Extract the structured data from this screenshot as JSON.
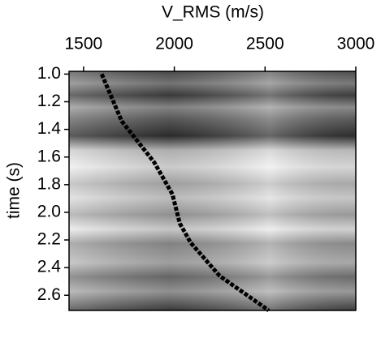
{
  "chart_data": {
    "type": "line",
    "xlabel": "V_RMS (m/s)",
    "ylabel": "time (s)",
    "xlim": [
      1420,
      3000
    ],
    "xticks": [
      1500,
      2000,
      2500,
      3000
    ],
    "ylim": [
      0.98,
      2.71
    ],
    "y_inverted": true,
    "yticks": [
      {
        "value": 1,
        "label": "1.0"
      },
      1.2,
      1.4,
      1.6,
      1.8,
      {
        "value": 2,
        "label": "2.0"
      },
      2.2,
      2.4,
      2.6
    ],
    "series": [
      {
        "color": "#000000",
        "x": [
          1600,
          1710,
          1890,
          1990,
          2030,
          2090,
          2250,
          2520
        ],
        "values": [
          1.0,
          1.34,
          1.64,
          1.87,
          2.08,
          2.22,
          2.46,
          2.71
        ]
      }
    ]
  }
}
